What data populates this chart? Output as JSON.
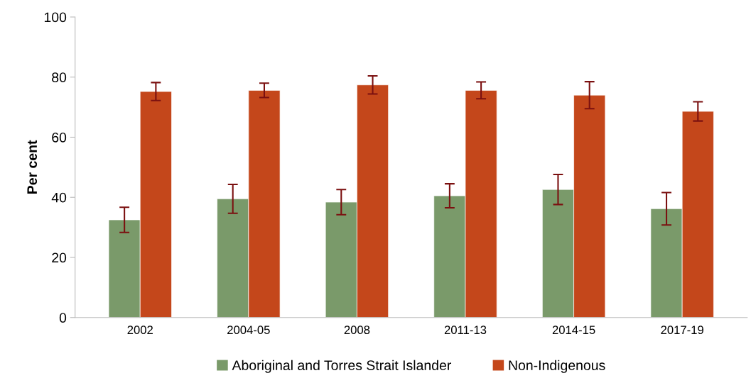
{
  "chart_data": {
    "type": "bar",
    "ylabel": "Per cent",
    "categories": [
      "2002",
      "2004-05",
      "2008",
      "2011-13",
      "2014-15",
      "2017-19"
    ],
    "series": [
      {
        "name": "Aboriginal and Torres Strait Islander",
        "color": "#7a9a6a",
        "values": [
          32.5,
          39.5,
          38.4,
          40.5,
          42.6,
          36.2
        ],
        "errors": [
          4.2,
          4.8,
          4.2,
          4.0,
          5.0,
          5.4
        ]
      },
      {
        "name": "Non-Indigenous",
        "color": "#c4471b",
        "values": [
          75.2,
          75.6,
          77.4,
          75.6,
          74.0,
          68.6
        ],
        "errors": [
          3.0,
          2.4,
          3.0,
          2.8,
          4.5,
          3.2
        ]
      }
    ],
    "ylim": [
      0,
      100
    ],
    "yticks": [
      0,
      20,
      40,
      60,
      80,
      100
    ],
    "grid": false,
    "legend": "bottom"
  }
}
